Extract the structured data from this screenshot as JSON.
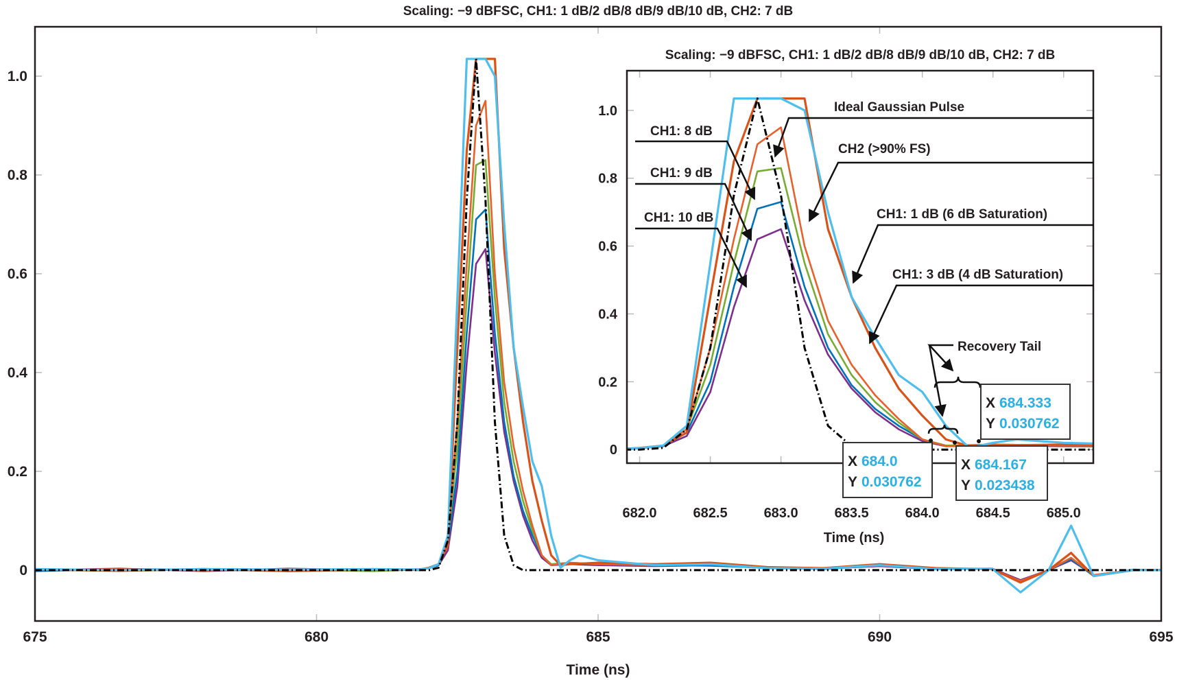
{
  "chart_data": [
    {
      "type": "line",
      "title": "Scaling: −9 dBFSC, CH1: 1 dB/2 dB/8 dB/9 dB/10 dB, CH2: 7 dB",
      "xlabel": "Time (ns)",
      "ylabel": "",
      "xlim": [
        675,
        695
      ],
      "ylim": [
        -0.103,
        1.1
      ],
      "xticks": [
        675,
        680,
        685,
        690,
        695
      ],
      "xtick_labels": [
        "675",
        "680",
        "685",
        "690",
        "695"
      ],
      "yticks": [
        0,
        0.2,
        0.4,
        0.6,
        0.8,
        1.0
      ],
      "ytick_labels": [
        "0",
        "0.2",
        "0.4",
        "0.6",
        "0.8",
        "1.0"
      ],
      "grid": false,
      "series": [
        {
          "color": "#7e2f8e",
          "style": "solid",
          "points": [
            [
              675,
              0
            ],
            [
              676.5,
              0.003
            ],
            [
              678,
              -0.002
            ],
            [
              679.5,
              0.003
            ],
            [
              681,
              0
            ],
            [
              681.833,
              0.002
            ],
            [
              682.0,
              0.004
            ],
            [
              682.167,
              0.01
            ],
            [
              682.333,
              0.04
            ],
            [
              682.5,
              0.17
            ],
            [
              682.667,
              0.42
            ],
            [
              682.833,
              0.62
            ],
            [
              683.0,
              0.65
            ],
            [
              683.167,
              0.44
            ],
            [
              683.333,
              0.28
            ],
            [
              683.5,
              0.18
            ],
            [
              683.667,
              0.11
            ],
            [
              683.833,
              0.06
            ],
            [
              684.0,
              0.025
            ],
            [
              684.167,
              0.01
            ],
            [
              684.5,
              0.012
            ],
            [
              685,
              0.01
            ],
            [
              686,
              0.008
            ],
            [
              687,
              0.01
            ],
            [
              688,
              0.004
            ],
            [
              689,
              0.003
            ],
            [
              690,
              0.008
            ],
            [
              691,
              0.002
            ],
            [
              692,
              0.003
            ],
            [
              692.5,
              -0.02
            ],
            [
              693,
              0.0
            ],
            [
              693.4,
              0.02
            ],
            [
              693.8,
              -0.01
            ],
            [
              694.5,
              0
            ],
            [
              695,
              0
            ]
          ]
        },
        {
          "color": "#0072bd",
          "style": "solid",
          "points": [
            [
              675,
              -0.002
            ],
            [
              676.5,
              0.002
            ],
            [
              678,
              0.001
            ],
            [
              679.5,
              -0.002
            ],
            [
              681,
              0.002
            ],
            [
              681.833,
              0
            ],
            [
              682.0,
              0.004
            ],
            [
              682.167,
              0.01
            ],
            [
              682.333,
              0.05
            ],
            [
              682.5,
              0.2
            ],
            [
              682.667,
              0.48
            ],
            [
              682.833,
              0.71
            ],
            [
              683.0,
              0.73
            ],
            [
              683.167,
              0.48
            ],
            [
              683.333,
              0.3
            ],
            [
              683.5,
              0.19
            ],
            [
              683.667,
              0.12
            ],
            [
              683.833,
              0.07
            ],
            [
              684.0,
              0.03
            ],
            [
              684.167,
              0.01
            ],
            [
              684.5,
              0.014
            ],
            [
              685,
              0.012
            ],
            [
              686,
              0.01
            ],
            [
              687,
              0.009
            ],
            [
              688,
              0.005
            ],
            [
              689,
              0.002
            ],
            [
              690,
              0.01
            ],
            [
              691,
              0.004
            ],
            [
              692,
              0.002
            ],
            [
              692.5,
              -0.022
            ],
            [
              693,
              0.0
            ],
            [
              693.4,
              0.022
            ],
            [
              693.8,
              -0.012
            ],
            [
              694.5,
              0.001
            ],
            [
              695,
              0
            ]
          ]
        },
        {
          "color": "#77ac30",
          "style": "solid",
          "points": [
            [
              675,
              0.001
            ],
            [
              676.5,
              -0.002
            ],
            [
              678,
              0.002
            ],
            [
              679.5,
              0.001
            ],
            [
              681,
              -0.002
            ],
            [
              681.833,
              0.001
            ],
            [
              682.0,
              0.005
            ],
            [
              682.167,
              0.012
            ],
            [
              682.333,
              0.06
            ],
            [
              682.5,
              0.25
            ],
            [
              682.667,
              0.55
            ],
            [
              682.833,
              0.82
            ],
            [
              683.0,
              0.83
            ],
            [
              683.167,
              0.55
            ],
            [
              683.333,
              0.34
            ],
            [
              683.5,
              0.22
            ],
            [
              683.667,
              0.14
            ],
            [
              683.833,
              0.08
            ],
            [
              684.0,
              0.03
            ],
            [
              684.167,
              0.012
            ],
            [
              684.5,
              0.015
            ],
            [
              685,
              0.012
            ],
            [
              686,
              0.012
            ],
            [
              687,
              0.014
            ],
            [
              688,
              0.006
            ],
            [
              689,
              0.004
            ],
            [
              690,
              0.012
            ],
            [
              691,
              0.003
            ],
            [
              692,
              0.002
            ],
            [
              692.5,
              -0.025
            ],
            [
              693,
              0.0
            ],
            [
              693.4,
              0.025
            ],
            [
              693.8,
              -0.01
            ],
            [
              694.5,
              0
            ],
            [
              695,
              0
            ]
          ]
        },
        {
          "color": "#e8602a",
          "style": "solid",
          "points": [
            [
              675,
              0
            ],
            [
              676.5,
              0.002
            ],
            [
              678,
              -0.001
            ],
            [
              679.5,
              0.002
            ],
            [
              681,
              0.001
            ],
            [
              681.833,
              0
            ],
            [
              682.0,
              0.005
            ],
            [
              682.167,
              0.012
            ],
            [
              682.333,
              0.06
            ],
            [
              682.5,
              0.3
            ],
            [
              682.667,
              0.62
            ],
            [
              682.833,
              0.9
            ],
            [
              683.0,
              0.95
            ],
            [
              683.167,
              0.6
            ],
            [
              683.333,
              0.38
            ],
            [
              683.5,
              0.25
            ],
            [
              683.667,
              0.16
            ],
            [
              683.833,
              0.09
            ],
            [
              684.0,
              0.03
            ],
            [
              684.167,
              0.01
            ],
            [
              684.5,
              0.015
            ],
            [
              685,
              0.012
            ],
            [
              686,
              0.01
            ],
            [
              687,
              0.012
            ],
            [
              688,
              0.005
            ],
            [
              689,
              0.004
            ],
            [
              690,
              0.01
            ],
            [
              691,
              0.003
            ],
            [
              692,
              0.002
            ],
            [
              692.5,
              -0.022
            ],
            [
              693,
              0.0
            ],
            [
              693.4,
              0.025
            ],
            [
              693.8,
              -0.01
            ],
            [
              694.5,
              0
            ],
            [
              695,
              0
            ]
          ]
        },
        {
          "color": "#d95319",
          "style": "solid",
          "points": [
            [
              675,
              0.001
            ],
            [
              676.5,
              -0.001
            ],
            [
              678,
              0.002
            ],
            [
              679.5,
              -0.002
            ],
            [
              681,
              0.001
            ],
            [
              681.833,
              0.001
            ],
            [
              682.0,
              0.005
            ],
            [
              682.167,
              0.012
            ],
            [
              682.333,
              0.05
            ],
            [
              682.5,
              0.45
            ],
            [
              682.667,
              0.85
            ],
            [
              682.833,
              1.035
            ],
            [
              683.0,
              1.035
            ],
            [
              683.167,
              1.035
            ],
            [
              683.333,
              0.65
            ],
            [
              683.5,
              0.45
            ],
            [
              683.667,
              0.3
            ],
            [
              683.833,
              0.18
            ],
            [
              684.0,
              0.1
            ],
            [
              684.167,
              0.03
            ],
            [
              684.333,
              0.01
            ],
            [
              684.5,
              0.012
            ],
            [
              685,
              0.015
            ],
            [
              686,
              0.012
            ],
            [
              687,
              0.015
            ],
            [
              688,
              0.006
            ],
            [
              689,
              0.004
            ],
            [
              690,
              0.012
            ],
            [
              691,
              0.004
            ],
            [
              692,
              0.002
            ],
            [
              692.5,
              -0.025
            ],
            [
              693,
              0.0
            ],
            [
              693.4,
              0.035
            ],
            [
              693.8,
              -0.012
            ],
            [
              694.5,
              0
            ],
            [
              695,
              0
            ]
          ]
        },
        {
          "color": "#4dbeee",
          "style": "solid",
          "points": [
            [
              675,
              0.002
            ],
            [
              676.5,
              0
            ],
            [
              678,
              0.002
            ],
            [
              679.5,
              0.001
            ],
            [
              681,
              0.002
            ],
            [
              681.833,
              0.001
            ],
            [
              682.0,
              0.004
            ],
            [
              682.167,
              0.012
            ],
            [
              682.333,
              0.07
            ],
            [
              682.5,
              0.55
            ],
            [
              682.667,
              1.035
            ],
            [
              682.833,
              1.035
            ],
            [
              683.0,
              1.035
            ],
            [
              683.167,
              1.0
            ],
            [
              683.333,
              0.7
            ],
            [
              683.5,
              0.45
            ],
            [
              683.667,
              0.33
            ],
            [
              683.833,
              0.22
            ],
            [
              684.0,
              0.17
            ],
            [
              684.167,
              0.07
            ],
            [
              684.333,
              0.005
            ],
            [
              684.5,
              0.02
            ],
            [
              684.667,
              0.03
            ],
            [
              685,
              0.02
            ],
            [
              686,
              0.01
            ],
            [
              687,
              0.012
            ],
            [
              688,
              0.004
            ],
            [
              689,
              0.003
            ],
            [
              690,
              0.01
            ],
            [
              691,
              0.002
            ],
            [
              692,
              0.003
            ],
            [
              692.5,
              -0.045
            ],
            [
              693,
              0.0
            ],
            [
              693.4,
              0.09
            ],
            [
              693.8,
              -0.012
            ],
            [
              694.5,
              0
            ],
            [
              695,
              0
            ]
          ]
        },
        {
          "color": "#000000",
          "style": "dashed",
          "points": [
            [
              675,
              0
            ],
            [
              682.0,
              0
            ],
            [
              682.167,
              0.005
            ],
            [
              682.333,
              0.06
            ],
            [
              682.5,
              0.3
            ],
            [
              682.667,
              0.75
            ],
            [
              682.833,
              1.035
            ],
            [
              683.0,
              0.75
            ],
            [
              683.167,
              0.3
            ],
            [
              683.333,
              0.07
            ],
            [
              683.5,
              0.01
            ],
            [
              683.667,
              0
            ],
            [
              695,
              0
            ]
          ]
        }
      ]
    },
    {
      "type": "line",
      "title": "Scaling: −9 dBFSC, CH1: 1 dB/2 dB/8 dB/9 dB/10 dB, CH2: 7 dB",
      "xlabel": "Time (ns)",
      "xlim": [
        681.91,
        685.21
      ],
      "ylim": [
        -0.04,
        1.117
      ],
      "xticks": [
        682.0,
        682.5,
        683.0,
        683.5,
        684.0,
        684.5,
        685.0
      ],
      "xtick_labels": [
        "682.0",
        "682.5",
        "683.0",
        "683.5",
        "684.0",
        "684.5",
        "685.0"
      ],
      "yticks": [
        0,
        0.2,
        0.4,
        0.6,
        0.8,
        1.0
      ],
      "ytick_labels": [
        "0",
        "0.2",
        "0.4",
        "0.6",
        "0.8",
        "1.0"
      ],
      "grid": false,
      "annotations": {
        "ideal": "Ideal Gaussian Pulse",
        "ch1_8": "CH1: 8 dB",
        "ch2": "CH2 (>90% FS)",
        "ch1_9": "CH1: 9 dB",
        "ch1_10": "CH1: 10 dB",
        "ch1_1": "CH1: 1 dB (6 dB Saturation)",
        "ch1_3": "CH1: 3 dB (4 dB Saturation)",
        "recovery": "Recovery Tail",
        "recovery_color": "#a8174a"
      },
      "data_tips": [
        {
          "x_label": "X",
          "x": "684.333",
          "y_label": "Y",
          "y": "0.030762"
        },
        {
          "x_label": "X",
          "x": "684.0",
          "y_label": "Y",
          "y": "0.030762"
        },
        {
          "x_label": "X",
          "x": "684.167",
          "y_label": "Y",
          "y": "0.023438"
        }
      ]
    }
  ]
}
